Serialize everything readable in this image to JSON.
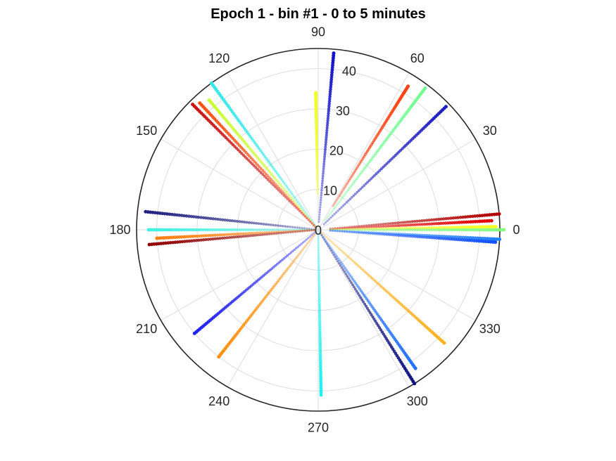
{
  "chart_data": {
    "type": "scatter",
    "subtype": "polar",
    "title": "Epoch 1 - bin #1 - 0 to 5 minutes",
    "theta_unit": "degrees",
    "angular_ticks": [
      "0",
      "30",
      "60",
      "90",
      "120",
      "150",
      "180",
      "210",
      "240",
      "270",
      "300",
      "330"
    ],
    "radial_ticks": [
      "0",
      "10",
      "20",
      "30",
      "40"
    ],
    "rlim": [
      0,
      45
    ],
    "grid": true,
    "series": [
      {
        "theta": 85,
        "r_start": 2,
        "r_end": 44,
        "color": "#1010c8"
      },
      {
        "theta": 91,
        "r_start": 9,
        "r_end": 34,
        "color": "#f0ff20"
      },
      {
        "theta": 58,
        "r_start": 7,
        "r_end": 42,
        "color": "#ff4010"
      },
      {
        "theta": 53,
        "r_start": 3,
        "r_end": 44,
        "color": "#70ff90"
      },
      {
        "theta": 44,
        "r_start": 2,
        "r_end": 44,
        "color": "#1c1cc0"
      },
      {
        "theta": 126,
        "r_start": 1,
        "r_end": 45,
        "color": "#30e8e8"
      },
      {
        "theta": 130,
        "r_start": 1,
        "r_end": 42,
        "color": "#c8ff30"
      },
      {
        "theta": 133,
        "r_start": 1,
        "r_end": 43,
        "color": "#ff5010"
      },
      {
        "theta": 135,
        "r_start": 1,
        "r_end": 44,
        "color": "#c81010"
      },
      {
        "theta": 5,
        "r_start": 3,
        "r_end": 45,
        "color": "#b00000"
      },
      {
        "theta": 3,
        "r_start": 3,
        "r_end": 43,
        "color": "#e00000"
      },
      {
        "theta": 1,
        "r_start": 3,
        "r_end": 44,
        "color": "#ffff20"
      },
      {
        "theta": 0,
        "r_start": 3,
        "r_end": 46,
        "color": "#80ff80"
      },
      {
        "theta": -3,
        "r_start": 3,
        "r_end": 45,
        "color": "#2080ff"
      },
      {
        "theta": -4,
        "r_start": 3,
        "r_end": 44,
        "color": "#1050ff"
      },
      {
        "theta": 174,
        "r_start": 1,
        "r_end": 43,
        "color": "#202080"
      },
      {
        "theta": 180,
        "r_start": 1,
        "r_end": 42,
        "color": "#40f0e0"
      },
      {
        "theta": 183,
        "r_start": 1,
        "r_end": 40,
        "color": "#ff8010"
      },
      {
        "theta": 185,
        "r_start": 1,
        "r_end": 42,
        "color": "#900000"
      },
      {
        "theta": 220,
        "r_start": 1,
        "r_end": 40,
        "color": "#2020f0"
      },
      {
        "theta": 232,
        "r_start": 1,
        "r_end": 40,
        "color": "#ff9010"
      },
      {
        "theta": 271,
        "r_start": 1,
        "r_end": 41,
        "color": "#20f0f0"
      },
      {
        "theta": 302,
        "r_start": 1,
        "r_end": 45,
        "color": "#101080"
      },
      {
        "theta": 305,
        "r_start": 1,
        "r_end": 42,
        "color": "#2070ff"
      },
      {
        "theta": 318,
        "r_start": 1,
        "r_end": 42,
        "color": "#ffb020"
      }
    ]
  }
}
